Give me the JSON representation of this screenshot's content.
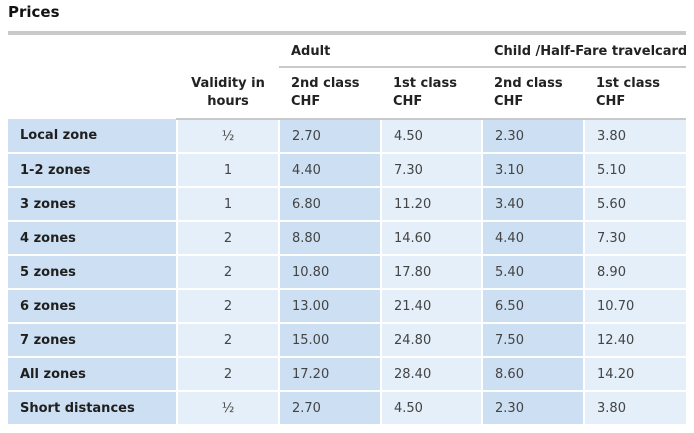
{
  "title": "Prices",
  "header": {
    "adult": "Adult",
    "child": "Child /Half-Fare travelcard",
    "validity": "Validity in hours",
    "second_class": "2nd class CHF",
    "first_class": "1st class CHF"
  },
  "rows": [
    {
      "zone": "Local zone",
      "validity": "½",
      "adult_2nd": "2.70",
      "adult_1st": "4.50",
      "child_2nd": "2.30",
      "child_1st": "3.80"
    },
    {
      "zone": "1-2 zones",
      "validity": "1",
      "adult_2nd": "4.40",
      "adult_1st": "7.30",
      "child_2nd": "3.10",
      "child_1st": "5.10"
    },
    {
      "zone": "3 zones",
      "validity": "1",
      "adult_2nd": "6.80",
      "adult_1st": "11.20",
      "child_2nd": "3.40",
      "child_1st": "5.60"
    },
    {
      "zone": "4 zones",
      "validity": "2",
      "adult_2nd": "8.80",
      "adult_1st": "14.60",
      "child_2nd": "4.40",
      "child_1st": "7.30"
    },
    {
      "zone": "5 zones",
      "validity": "2",
      "adult_2nd": "10.80",
      "adult_1st": "17.80",
      "child_2nd": "5.40",
      "child_1st": "8.90"
    },
    {
      "zone": "6 zones",
      "validity": "2",
      "adult_2nd": "13.00",
      "adult_1st": "21.40",
      "child_2nd": "6.50",
      "child_1st": "10.70"
    },
    {
      "zone": "7 zones",
      "validity": "2",
      "adult_2nd": "15.00",
      "adult_1st": "24.80",
      "child_2nd": "7.50",
      "child_1st": "12.40"
    },
    {
      "zone": "All zones",
      "validity": "2",
      "adult_2nd": "17.20",
      "adult_1st": "28.40",
      "child_2nd": "8.60",
      "child_1st": "14.20"
    },
    {
      "zone": "Short distances",
      "validity": "½",
      "adult_2nd": "2.70",
      "adult_1st": "4.50",
      "child_2nd": "2.30",
      "child_1st": "3.80"
    }
  ],
  "colors": {
    "cell_dark": "#cddff2",
    "cell_light": "#e4eff9",
    "rule": "#c9c9c9"
  }
}
